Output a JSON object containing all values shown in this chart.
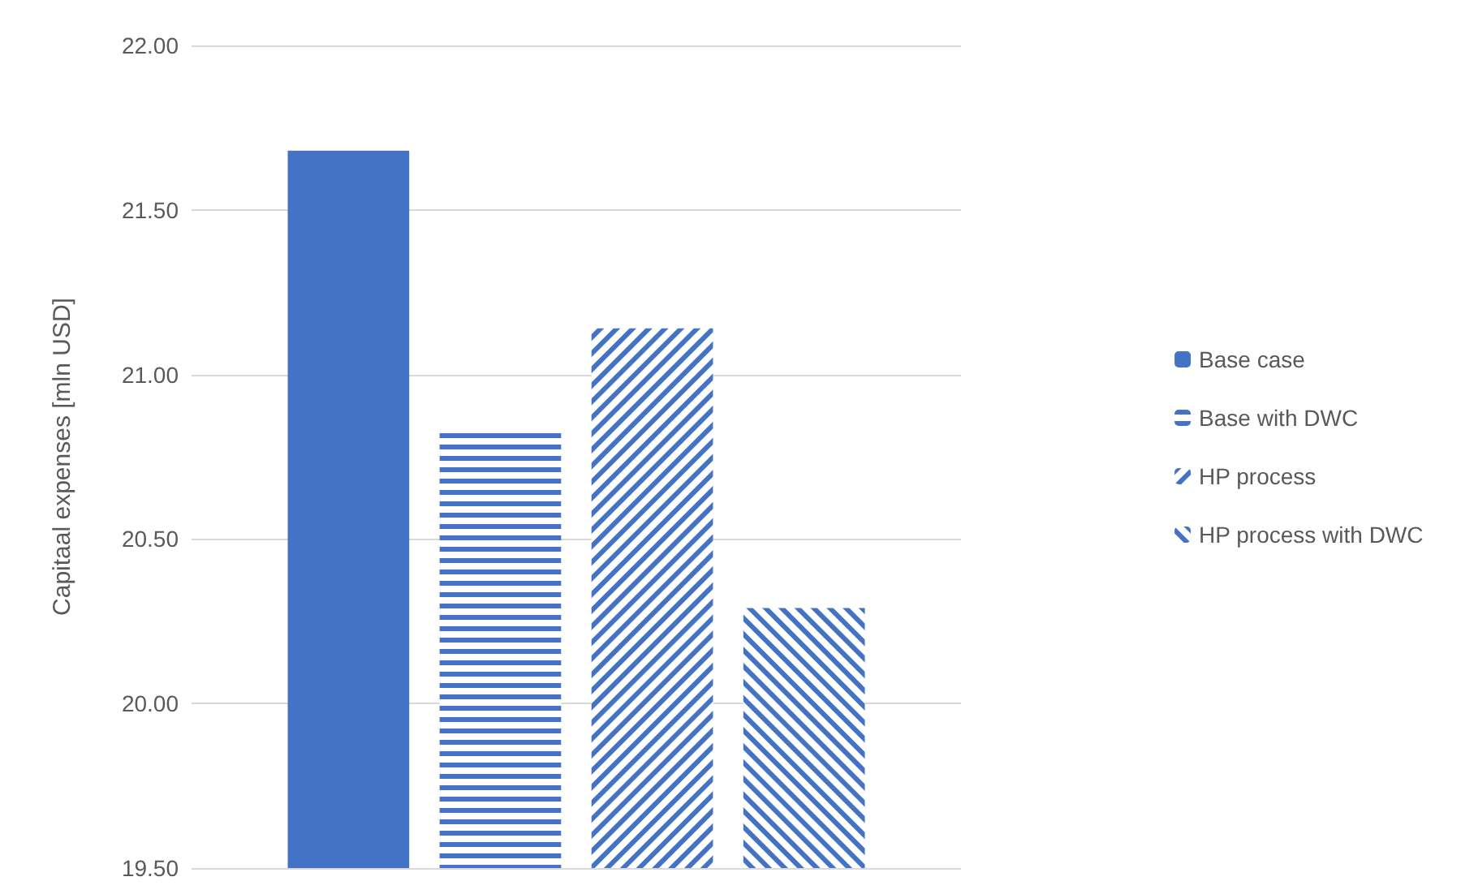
{
  "chart_data": {
    "type": "bar",
    "ylabel": "Capitaal expenses [mln USD]",
    "categories": [
      null
    ],
    "series": [
      {
        "name": "Base case",
        "color": "#4472c4",
        "values": [
          21.68
        ]
      },
      {
        "name": "Base with DWC",
        "color": "#4472c4",
        "values": [
          20.83
        ]
      },
      {
        "name": "HP process",
        "color": "#4472c4",
        "values": [
          21.14
        ]
      },
      {
        "name": "HP process with DWC",
        "color": "#4472c4",
        "values": [
          20.29
        ]
      }
    ],
    "ylim": [
      19.5,
      22
    ],
    "yticks": [
      {
        "value": 19.5,
        "label": "19.50"
      },
      {
        "value": 20,
        "label": "20.00"
      },
      {
        "value": 20.5,
        "label": "20.50"
      },
      {
        "value": 21,
        "label": "21.00"
      },
      {
        "value": 21.5,
        "label": "21.50"
      },
      {
        "value": 22,
        "label": "22.00"
      }
    ],
    "grid": "y",
    "legend": "right"
  }
}
